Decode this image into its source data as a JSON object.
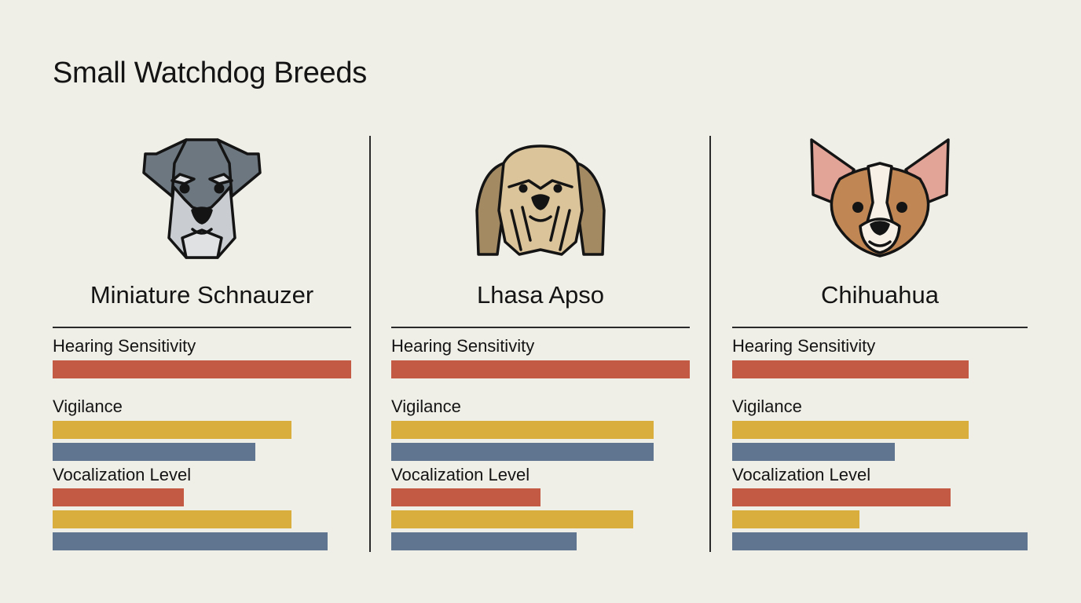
{
  "title": "Small Watchdog Breeds",
  "colors": {
    "background": "#f0efe7",
    "red": "#c25a44",
    "yellow": "#d9ae3d",
    "blue": "#5f7590"
  },
  "chart_data": {
    "type": "bar",
    "title": "Small Watchdog Breeds",
    "scale_max": 1.0,
    "panels": [
      {
        "name": "Miniature Schnauzer",
        "icon": "schnauzer-icon",
        "metrics": [
          {
            "label": "Hearing Sensitivity",
            "bars": [
              {
                "color": "red",
                "value": 1.0
              }
            ]
          },
          {
            "label": "Vigilance",
            "bars": [
              {
                "color": "yellow",
                "value": 0.8
              },
              {
                "color": "blue",
                "value": 0.68
              }
            ]
          },
          {
            "label": "Vocalization Level",
            "bars": [
              {
                "color": "red",
                "value": 0.44
              },
              {
                "color": "yellow",
                "value": 0.8
              },
              {
                "color": "blue",
                "value": 0.92
              }
            ]
          }
        ]
      },
      {
        "name": "Lhasa Apso",
        "icon": "lhasa-apso-icon",
        "metrics": [
          {
            "label": "Hearing Sensitivity",
            "bars": [
              {
                "color": "red",
                "value": 1.0
              }
            ]
          },
          {
            "label": "Vigilance",
            "bars": [
              {
                "color": "yellow",
                "value": 0.88
              },
              {
                "color": "blue",
                "value": 0.88
              }
            ]
          },
          {
            "label": "Vocalization Level",
            "bars": [
              {
                "color": "red",
                "value": 0.5
              },
              {
                "color": "yellow",
                "value": 0.81
              },
              {
                "color": "blue",
                "value": 0.62
              }
            ]
          }
        ]
      },
      {
        "name": "Chihuahua",
        "icon": "chihuahua-icon",
        "metrics": [
          {
            "label": "Hearing Sensitivity",
            "bars": [
              {
                "color": "red",
                "value": 0.8
              }
            ]
          },
          {
            "label": "Vigilance",
            "bars": [
              {
                "color": "yellow",
                "value": 0.8
              },
              {
                "color": "blue",
                "value": 0.55
              }
            ]
          },
          {
            "label": "Vocalization Level",
            "bars": [
              {
                "color": "red",
                "value": 0.74
              },
              {
                "color": "yellow",
                "value": 0.43
              },
              {
                "color": "blue",
                "value": 1.0
              }
            ]
          }
        ]
      }
    ]
  }
}
